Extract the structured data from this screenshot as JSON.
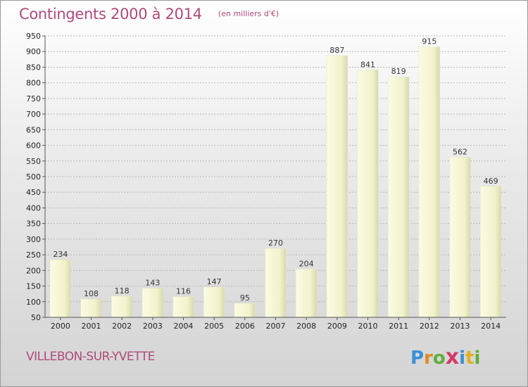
{
  "header": {
    "title": "Contingents 2000 à 2014",
    "subtitle": "(en milliers d'€)"
  },
  "footer": {
    "commune": "VILLEBON-SUR-YVETTE",
    "logo": {
      "letters": [
        "P",
        "r",
        "o",
        "x",
        "i",
        "t",
        "i"
      ],
      "colors": [
        "#3a8fd6",
        "#e08a1e",
        "#5fae3a",
        "#d63a6a",
        "#3a8fd6",
        "#e0b020",
        "#5fae3a"
      ]
    }
  },
  "chart_data": {
    "type": "bar",
    "title": "Contingents 2000 à 2014",
    "subtitle": "(en milliers d'€)",
    "categories": [
      "2000",
      "2001",
      "2002",
      "2003",
      "2004",
      "2005",
      "2006",
      "2007",
      "2008",
      "2009",
      "2010",
      "2011",
      "2012",
      "2013",
      "2014"
    ],
    "values": [
      234,
      108,
      118,
      143,
      116,
      147,
      95,
      270,
      204,
      887,
      841,
      819,
      915,
      562,
      469
    ],
    "ylim": [
      50,
      950
    ],
    "yticks": [
      50,
      100,
      150,
      200,
      250,
      300,
      350,
      400,
      450,
      500,
      550,
      600,
      650,
      700,
      750,
      800,
      850,
      900,
      950
    ],
    "grid": true,
    "bar_color": "#f8f8d8"
  }
}
